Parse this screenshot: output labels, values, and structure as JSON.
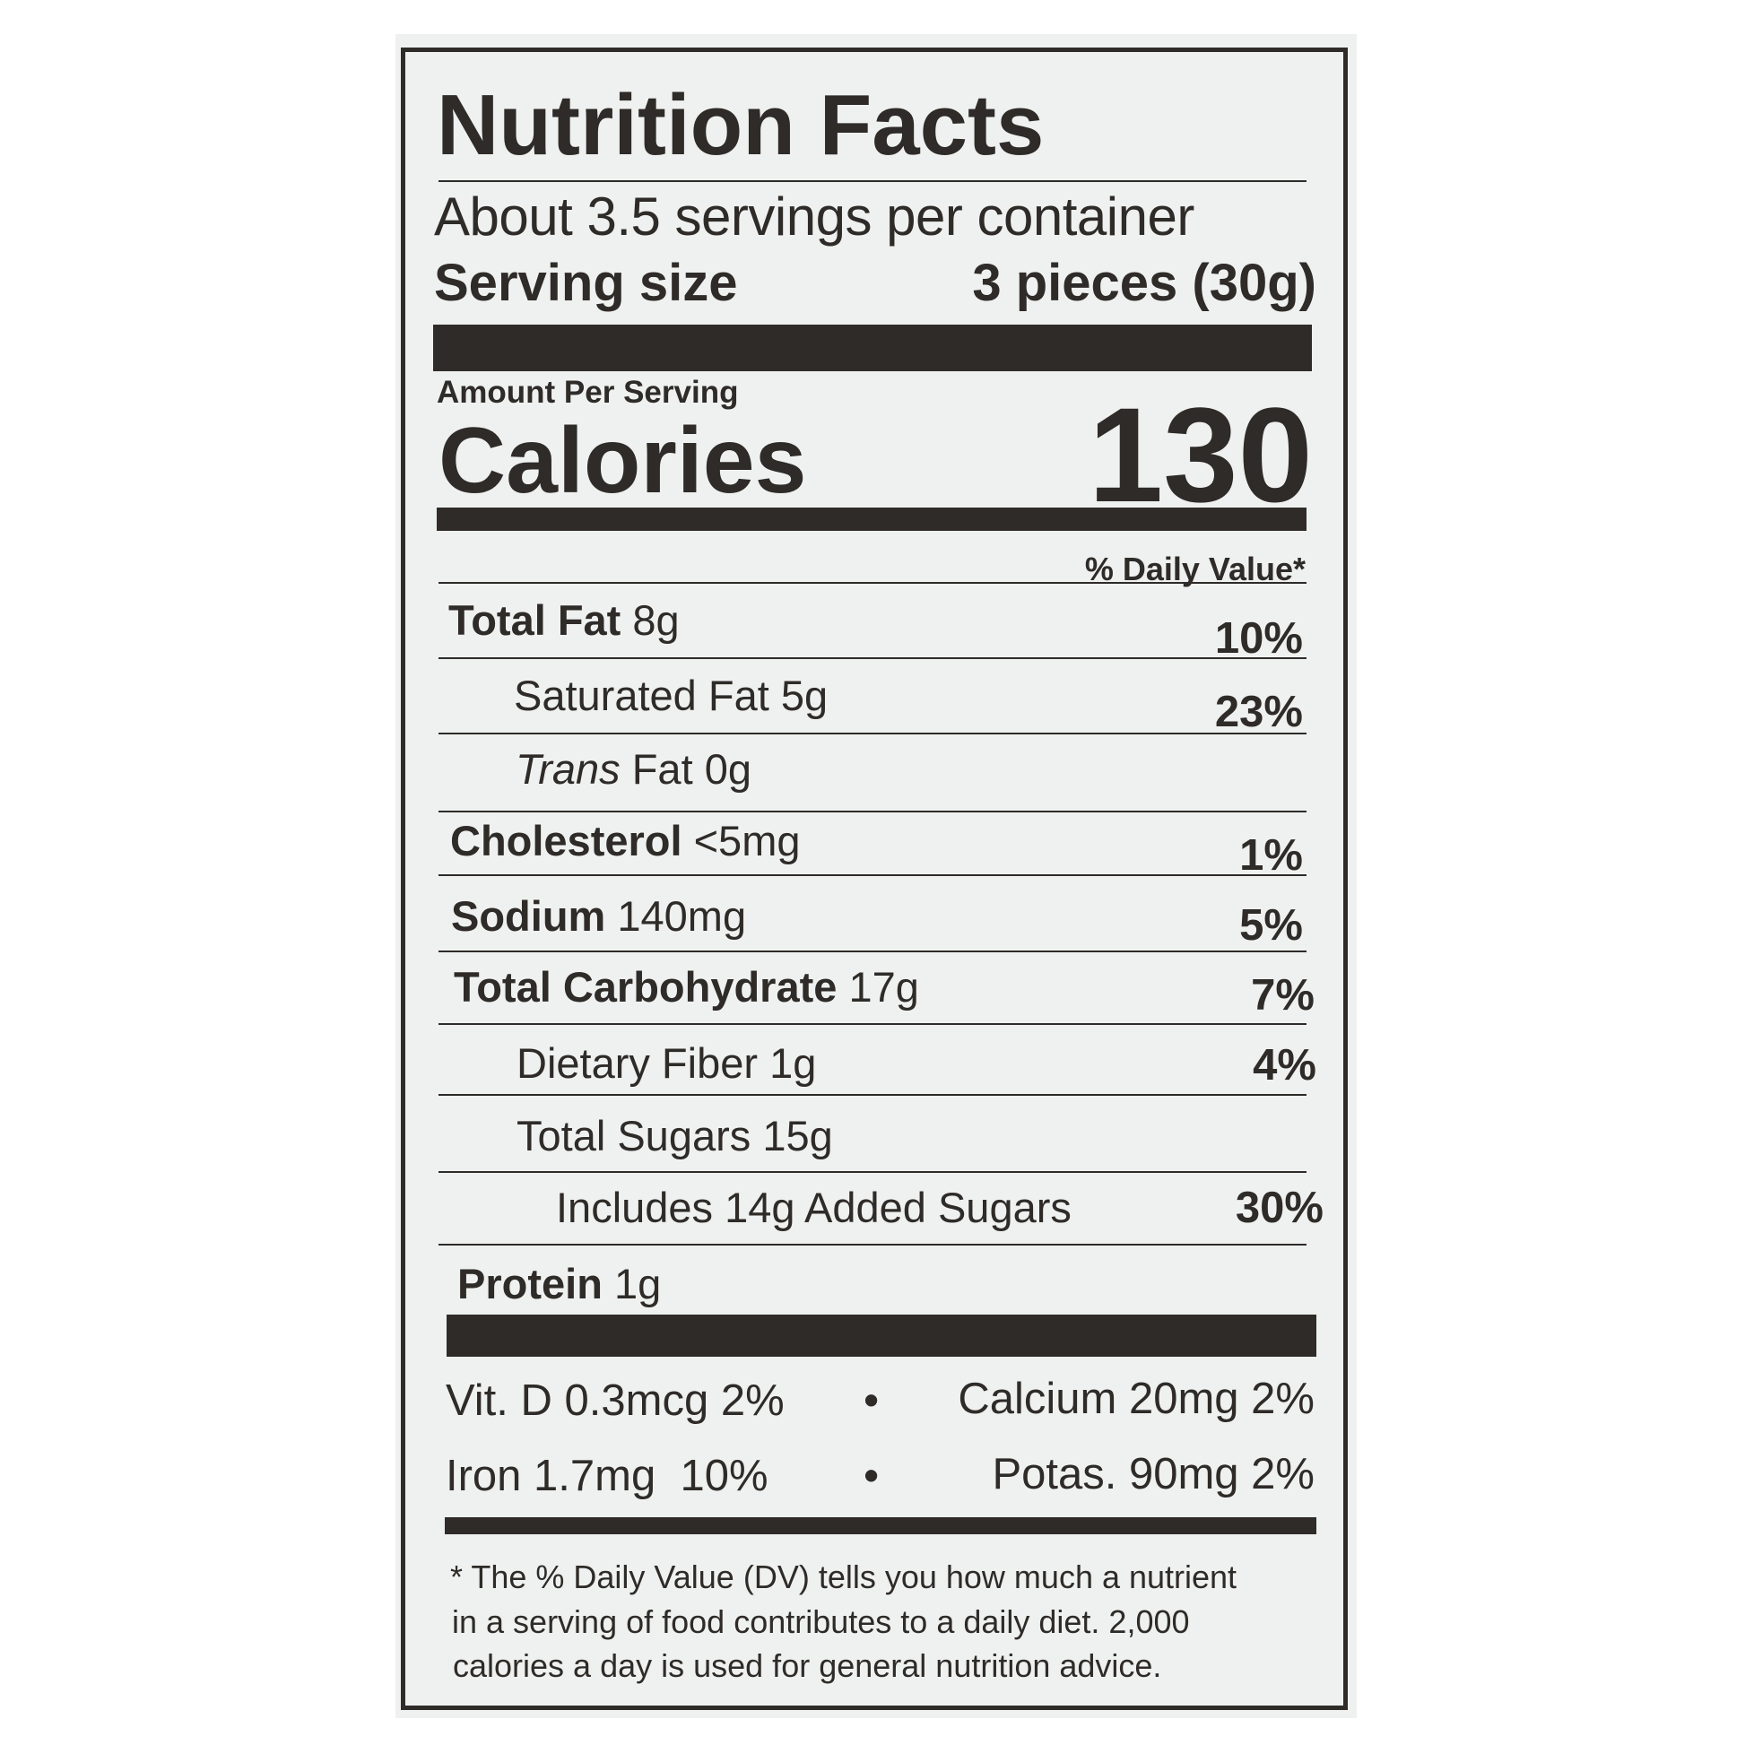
{
  "title": "Nutrition Facts",
  "servings_per_container": "About 3.5 servings per container",
  "serving_size": {
    "label": "Serving size",
    "value": "3 pieces (30g)"
  },
  "amount_per_serving": "Amount Per Serving",
  "calories": {
    "label": "Calories",
    "value": "130"
  },
  "daily_value_header": "% Daily Value*",
  "nutrients": [
    {
      "name": "Total Fat",
      "amount": "8g",
      "dv": "10%"
    },
    {
      "name": "Saturated Fat",
      "amount": "5g",
      "dv": "23%"
    },
    {
      "name": "Trans",
      "name_rest": "Fat",
      "amount": "0g",
      "dv": ""
    },
    {
      "name": "Cholesterol",
      "amount": "<5mg",
      "dv": "1%"
    },
    {
      "name": "Sodium",
      "amount": "140mg",
      "dv": "5%"
    },
    {
      "name": "Total Carbohydrate",
      "amount": "17g",
      "dv": "7%"
    },
    {
      "name": "Dietary Fiber",
      "amount": "1g",
      "dv": "4%"
    },
    {
      "name": "Total Sugars",
      "amount": "15g",
      "dv": ""
    },
    {
      "name": "Includes 14g Added Sugars",
      "amount": "",
      "dv": "30%"
    },
    {
      "name": "Protein",
      "amount": "1g",
      "dv": ""
    }
  ],
  "micronutrients": [
    {
      "text": "Vit. D 0.3mcg 2%"
    },
    {
      "text": "Calcium 20mg 2%"
    },
    {
      "text": "Iron 1.7mg  10%"
    },
    {
      "text": "Potas. 90mg 2%"
    }
  ],
  "bullet": "•",
  "footnote": [
    "* The % Daily Value (DV) tells you how much a nutrient",
    "in a serving of food contributes to a daily diet. 2,000",
    "calories a day is used for general nutrition advice."
  ]
}
